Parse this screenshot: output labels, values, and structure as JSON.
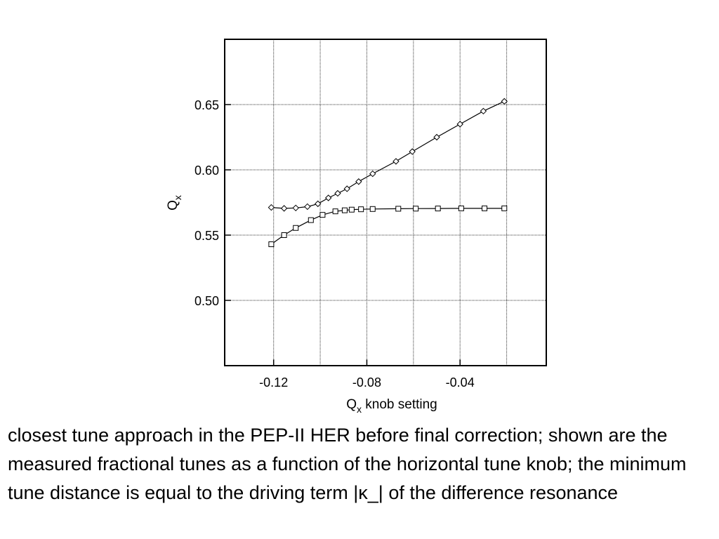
{
  "chart_data": {
    "type": "line",
    "xlabel": {
      "main": "Q",
      "sub": "x",
      "rest": " knob setting"
    },
    "ylabel": {
      "main": "Q",
      "sub": "x"
    },
    "xlim": [
      -0.141,
      -0.003
    ],
    "ylim": [
      0.45,
      0.7
    ],
    "xticks": [
      -0.12,
      -0.08,
      -0.04
    ],
    "xtick_labels": [
      "-0.12",
      "-0.08",
      "-0.04"
    ],
    "yticks": [
      0.5,
      0.55,
      0.6,
      0.65
    ],
    "ytick_labels": [
      "0.50",
      "0.55",
      "0.60",
      "0.65"
    ],
    "xgrid": [
      -0.12,
      -0.1,
      -0.08,
      -0.06,
      -0.04,
      -0.02
    ],
    "ygrid": [
      0.5,
      0.55,
      0.6,
      0.65
    ],
    "grid": true,
    "series": [
      {
        "marker": "diamond",
        "x": [
          -0.121,
          -0.1155,
          -0.1105,
          -0.1055,
          -0.101,
          -0.0965,
          -0.0925,
          -0.0885,
          -0.0835,
          -0.0775,
          -0.0675,
          -0.0605,
          -0.05,
          -0.04,
          -0.03,
          -0.021
        ],
        "y": [
          0.5712,
          0.5705,
          0.5708,
          0.5718,
          0.574,
          0.5785,
          0.582,
          0.5855,
          0.591,
          0.597,
          0.6065,
          0.614,
          0.625,
          0.635,
          0.645,
          0.6525
        ]
      },
      {
        "marker": "square",
        "x": [
          -0.121,
          -0.1155,
          -0.1105,
          -0.104,
          -0.099,
          -0.0935,
          -0.0895,
          -0.0865,
          -0.0825,
          -0.0775,
          -0.0665,
          -0.059,
          -0.0495,
          -0.0395,
          -0.0295,
          -0.021
        ],
        "y": [
          0.543,
          0.55,
          0.5555,
          0.5615,
          0.5655,
          0.5682,
          0.569,
          0.5695,
          0.5698,
          0.57,
          0.5702,
          0.5703,
          0.5704,
          0.5705,
          0.5705,
          0.5705
        ]
      }
    ]
  },
  "caption": "closest tune approach in the PEP-II HER before final correction; shown are the measured fractional tunes as a function of the horizontal tune knob; the minimum tune distance is equal to the driving term |κ_| of the difference resonance"
}
